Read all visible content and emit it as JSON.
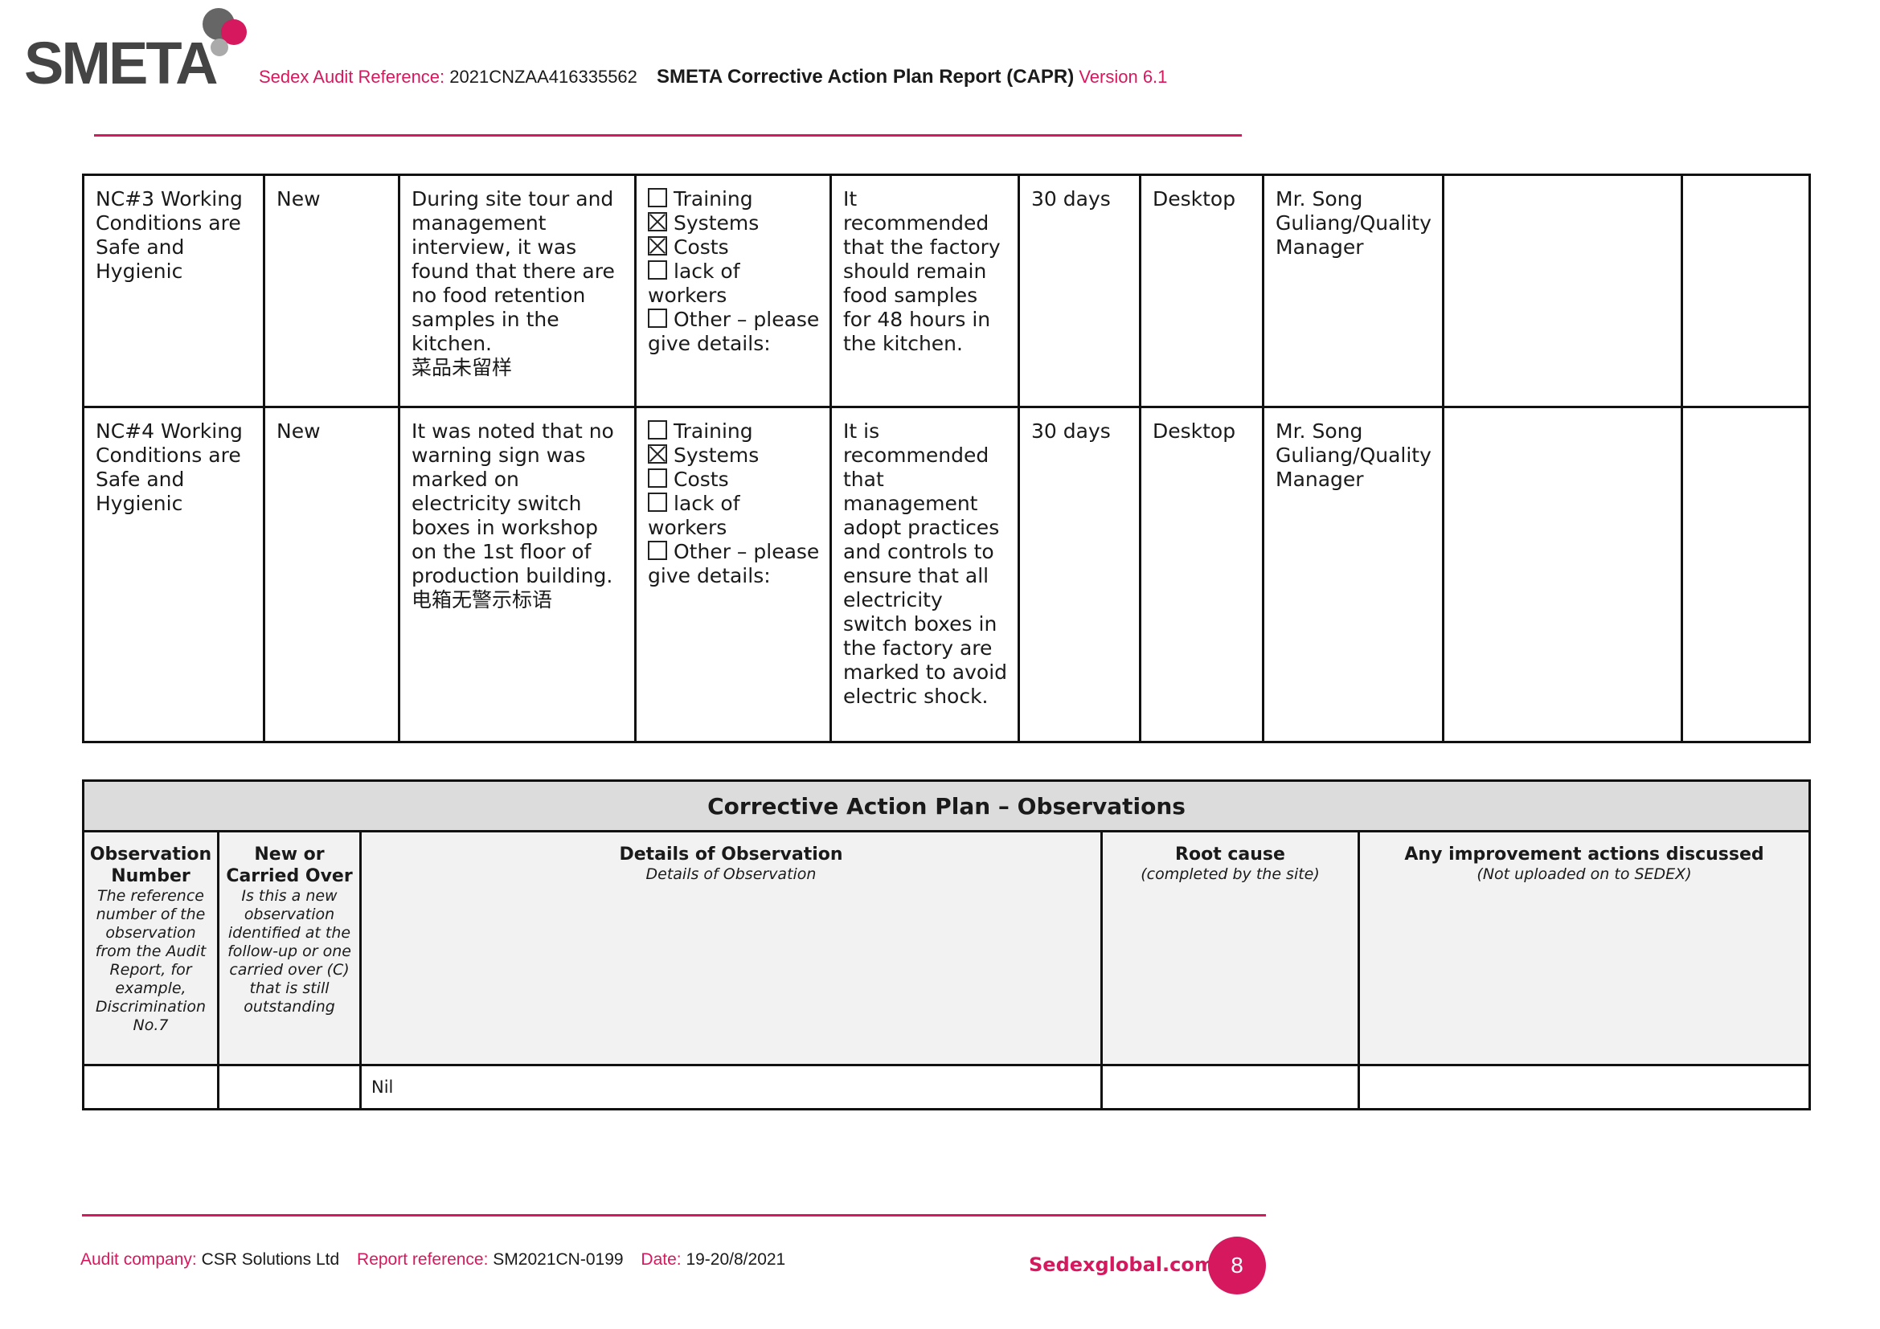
{
  "header": {
    "logo_text": "SMETA",
    "audit_ref_label": "Sedex Audit Reference:",
    "audit_ref_value": "2021CNZAA416335562",
    "report_title": "SMETA Corrective Action Plan Report (CAPR)",
    "version": "Version 6.1"
  },
  "nc_rows": [
    {
      "nc": "NC#3 Working Conditions are Safe and Hygienic",
      "status": "New",
      "details": "During site tour and management interview, it was found that there are no food retention samples in the kitchen.",
      "details_cn": "菜品未留样",
      "root_causes": [
        {
          "label": "Training",
          "checked": false
        },
        {
          "label": "Systems",
          "checked": true
        },
        {
          "label": "Costs",
          "checked": true
        },
        {
          "label": "lack of workers",
          "checked": false
        },
        {
          "label": "Other – please give details:",
          "checked": false
        }
      ],
      "recommendation": "It recommended that the factory should remain food samples for 48 hours in the kitchen.",
      "timescale": "30 days",
      "verification": "Desktop",
      "responsible": "Mr. Song Guliang/Quality Manager"
    },
    {
      "nc": "NC#4 Working Conditions are Safe and Hygienic",
      "status": "New",
      "details": "It was noted that no warning sign was marked on electricity switch boxes in workshop on the 1st floor of production building.",
      "details_cn": "电箱无警示标语",
      "root_causes": [
        {
          "label": "Training",
          "checked": false
        },
        {
          "label": "Systems",
          "checked": true
        },
        {
          "label": "Costs",
          "checked": false
        },
        {
          "label": "lack of workers",
          "checked": false
        },
        {
          "label": "Other – please give details:",
          "checked": false
        }
      ],
      "recommendation": "It is recommended that management adopt practices and controls to ensure that all electricity switch boxes in the factory are marked to avoid electric shock.",
      "timescale": "30 days",
      "verification": "Desktop",
      "responsible": "Mr. Song Guliang/Quality Manager"
    }
  ],
  "observations": {
    "title": "Corrective Action Plan – Observations",
    "headers": [
      {
        "title": "Observation Number",
        "sub": "The reference number of the observation from the Audit Report, for example, Discrimination No.7"
      },
      {
        "title": "New or Carried Over",
        "sub": "Is this a new observation identified at the follow-up or one carried over (C) that is still outstanding"
      },
      {
        "title": "Details of Observation",
        "sub": "Details of Observation"
      },
      {
        "title": "Root cause",
        "sub": "(completed by the site)"
      },
      {
        "title": "Any improvement actions discussed",
        "sub": "(Not uploaded on to SEDEX)"
      }
    ],
    "row": [
      "",
      "",
      "Nil",
      "",
      ""
    ]
  },
  "footer": {
    "company_label": "Audit company:",
    "company_value": "CSR Solutions Ltd",
    "report_ref_label": "Report reference:",
    "report_ref_value": "SM2021CN-0199",
    "date_label": "Date:",
    "date_value": "19-20/8/2021",
    "site": "Sedexglobal.com",
    "page_number": "8"
  },
  "colors": {
    "brand_pink": "#d6185f",
    "logo_grey": "#444444",
    "header_grey": "#dcdcdc"
  }
}
